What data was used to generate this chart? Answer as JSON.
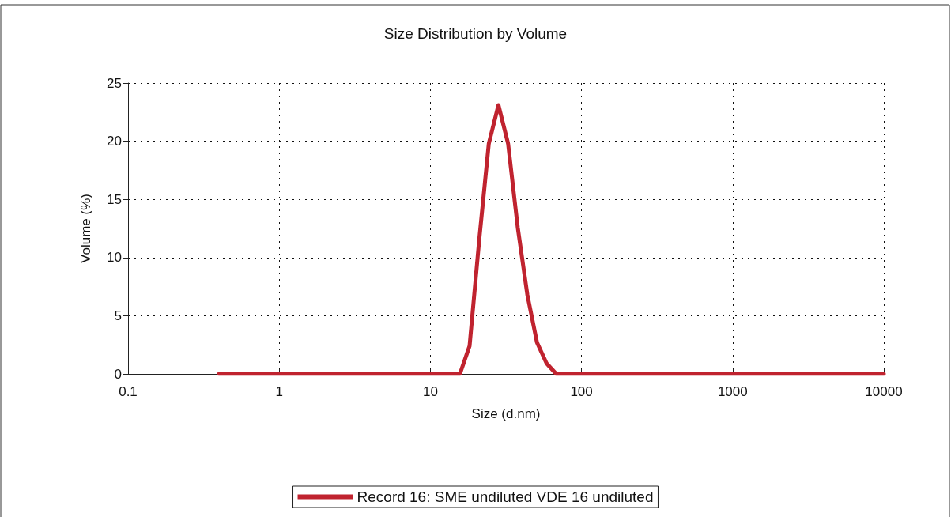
{
  "chart_data": {
    "type": "line",
    "title": "Size Distribution by Volume",
    "xlabel": "Size (d.nm)",
    "ylabel": "Volume (%)",
    "x": [
      0.4,
      15.69,
      18.17,
      21.04,
      24.36,
      28.21,
      32.67,
      37.84,
      43.82,
      50.75,
      58.77,
      68.06,
      10000
    ],
    "series": [
      {
        "name": "Record 16: SME undiluted VDE 16 undiluted",
        "color": "#c0232f",
        "values": [
          0,
          0,
          2.4,
          11.5,
          19.8,
          23.1,
          19.8,
          12.6,
          6.8,
          2.7,
          0.9,
          0,
          0
        ]
      }
    ],
    "log": "x",
    "xlim": [
      0.1,
      10000
    ],
    "xticks": [
      0.1,
      1,
      10,
      100,
      1000,
      10000
    ],
    "ylim": [
      0,
      25
    ],
    "yticks": [
      0,
      5,
      10,
      15,
      20,
      25
    ],
    "grid": true,
    "legend": "bottom",
    "marker": "none",
    "line_style": "solid"
  }
}
